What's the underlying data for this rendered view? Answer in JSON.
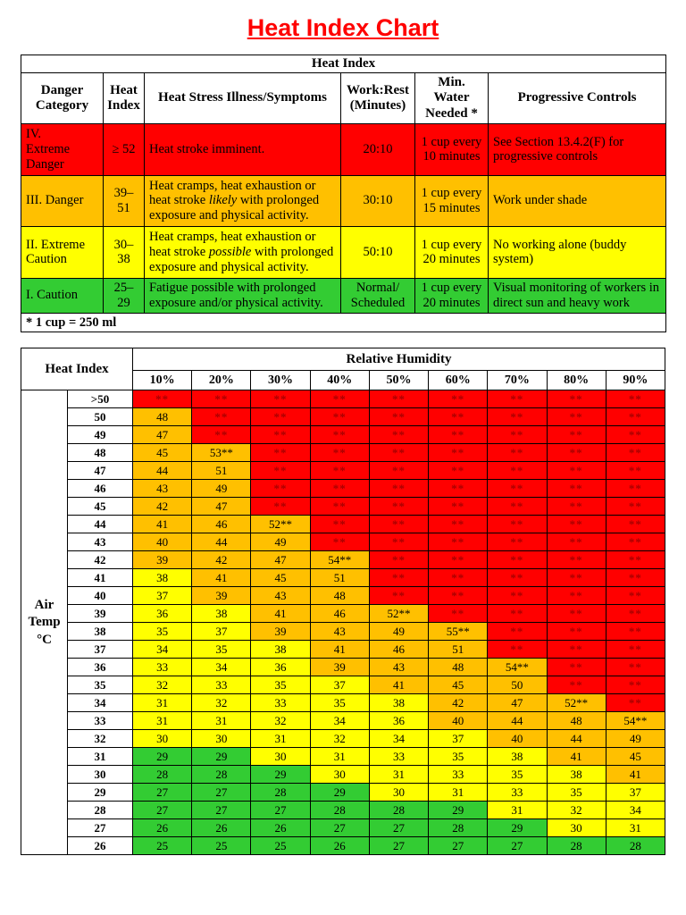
{
  "page_title": "Heat Index Chart",
  "colors": {
    "red": "#FF0000",
    "orange": "#FFC000",
    "yellow": "#FFFF00",
    "green": "#33CC33",
    "title_red": "#FF0000",
    "star_text": "#A80000"
  },
  "danger_table": {
    "title": "Heat Index",
    "headers": [
      "Danger\nCategory",
      "Heat\nIndex",
      "Heat Stress Illness/Symptoms",
      "Work:Rest\n(Minutes)",
      "Min.\nWater\nNeeded *",
      "Progressive Controls"
    ],
    "rows": [
      {
        "category": "IV.\nExtreme\nDanger",
        "heat_index": "≥ 52",
        "symptoms": {
          "pre": "Heat stroke imminent.",
          "italic": "",
          "post": ""
        },
        "work_rest": "20:10",
        "water": "1 cup every\n10 minutes",
        "controls": "See Section 13.4.2(F) for progressive controls",
        "color": "red"
      },
      {
        "category": "III. Danger",
        "heat_index": "39–51",
        "symptoms": {
          "pre": "Heat cramps, heat exhaustion or heat stroke ",
          "italic": "likely",
          "post": " with prolonged exposure and physical activity."
        },
        "work_rest": "30:10",
        "water": "1 cup every\n15 minutes",
        "controls": "Work under shade",
        "color": "orange"
      },
      {
        "category": "II. Extreme\nCaution",
        "heat_index": "30–38",
        "symptoms": {
          "pre": "Heat cramps, heat exhaustion or heat stroke ",
          "italic": "possible",
          "post": " with prolonged exposure and physical activity."
        },
        "work_rest": "50:10",
        "water": "1 cup every\n20 minutes",
        "controls": "No working alone (buddy system)",
        "color": "yellow"
      },
      {
        "category": "I. Caution",
        "heat_index": "25–29",
        "symptoms": {
          "pre": "Fatigue possible with prolonged exposure and/or physical activity.",
          "italic": "",
          "post": ""
        },
        "work_rest": "Normal/\nScheduled",
        "water": "1 cup every\n20 minutes",
        "controls": "Visual monitoring of workers in direct sun and heavy work",
        "color": "green"
      }
    ],
    "footnote": "* 1 cup = 250 ml"
  },
  "chart_data": {
    "type": "heatmap",
    "title": "Heat Index",
    "xlabel": "Relative Humidity",
    "ylabel": "Air\nTemp\n°C",
    "columns": [
      "10%",
      "20%",
      "30%",
      "40%",
      "50%",
      "60%",
      "70%",
      "80%",
      "90%"
    ],
    "rows": [
      ">50",
      "50",
      "49",
      "48",
      "47",
      "46",
      "45",
      "44",
      "43",
      "42",
      "41",
      "40",
      "39",
      "38",
      "37",
      "36",
      "35",
      "34",
      "33",
      "32",
      "31",
      "30",
      "29",
      "28",
      "27",
      "26"
    ],
    "values": [
      [
        "**",
        "**",
        "**",
        "**",
        "**",
        "**",
        "**",
        "**",
        "**"
      ],
      [
        "48",
        "**",
        "**",
        "**",
        "**",
        "**",
        "**",
        "**",
        "**"
      ],
      [
        "47",
        "**",
        "**",
        "**",
        "**",
        "**",
        "**",
        "**",
        "**"
      ],
      [
        "45",
        "53**",
        "**",
        "**",
        "**",
        "**",
        "**",
        "**",
        "**"
      ],
      [
        "44",
        "51",
        "**",
        "**",
        "**",
        "**",
        "**",
        "**",
        "**"
      ],
      [
        "43",
        "49",
        "**",
        "**",
        "**",
        "**",
        "**",
        "**",
        "**"
      ],
      [
        "42",
        "47",
        "**",
        "**",
        "**",
        "**",
        "**",
        "**",
        "**"
      ],
      [
        "41",
        "46",
        "52**",
        "**",
        "**",
        "**",
        "**",
        "**",
        "**"
      ],
      [
        "40",
        "44",
        "49",
        "**",
        "**",
        "**",
        "**",
        "**",
        "**"
      ],
      [
        "39",
        "42",
        "47",
        "54**",
        "**",
        "**",
        "**",
        "**",
        "**"
      ],
      [
        "38",
        "41",
        "45",
        "51",
        "**",
        "**",
        "**",
        "**",
        "**"
      ],
      [
        "37",
        "39",
        "43",
        "48",
        "**",
        "**",
        "**",
        "**",
        "**"
      ],
      [
        "36",
        "38",
        "41",
        "46",
        "52**",
        "**",
        "**",
        "**",
        "**"
      ],
      [
        "35",
        "37",
        "39",
        "43",
        "49",
        "55**",
        "**",
        "**",
        "**"
      ],
      [
        "34",
        "35",
        "38",
        "41",
        "46",
        "51",
        "**",
        "**",
        "**"
      ],
      [
        "33",
        "34",
        "36",
        "39",
        "43",
        "48",
        "54**",
        "**",
        "**"
      ],
      [
        "32",
        "33",
        "35",
        "37",
        "41",
        "45",
        "50",
        "**",
        "**"
      ],
      [
        "31",
        "32",
        "33",
        "35",
        "38",
        "42",
        "47",
        "52**",
        "**"
      ],
      [
        "31",
        "31",
        "32",
        "34",
        "36",
        "40",
        "44",
        "48",
        "54**"
      ],
      [
        "30",
        "30",
        "31",
        "32",
        "34",
        "37",
        "40",
        "44",
        "49"
      ],
      [
        "29",
        "29",
        "30",
        "31",
        "33",
        "35",
        "38",
        "41",
        "45"
      ],
      [
        "28",
        "28",
        "29",
        "30",
        "31",
        "33",
        "35",
        "38",
        "41"
      ],
      [
        "27",
        "27",
        "28",
        "29",
        "30",
        "31",
        "33",
        "35",
        "37"
      ],
      [
        "27",
        "27",
        "27",
        "28",
        "28",
        "29",
        "31",
        "32",
        "34"
      ],
      [
        "26",
        "26",
        "26",
        "27",
        "27",
        "28",
        "29",
        "30",
        "31"
      ],
      [
        "25",
        "25",
        "25",
        "26",
        "27",
        "27",
        "27",
        "28",
        "28"
      ]
    ],
    "value_color_ranges": {
      "green": "25–29",
      "yellow": "30–38",
      "orange": "39–51",
      "red": "≥ 52 or **"
    }
  }
}
